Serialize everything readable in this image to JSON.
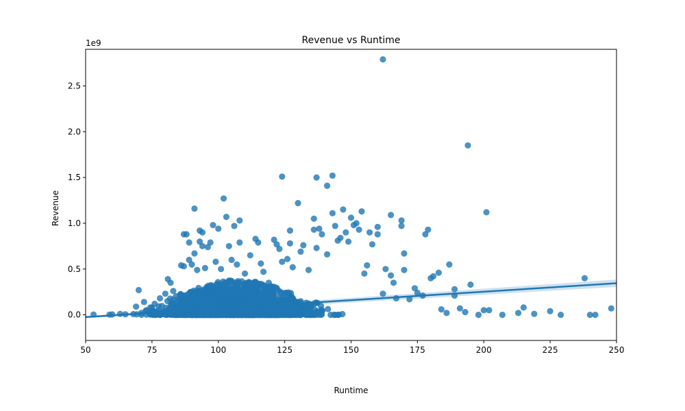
{
  "chart_data": {
    "type": "scatter",
    "title": "Revenue vs Runtime",
    "xlabel": "Runtime",
    "ylabel": "Revenue",
    "y_offset_label": "1e9",
    "xlim": [
      50,
      250
    ],
    "ylim": [
      -0.28,
      2.9
    ],
    "y_scale_factor": 1000000000,
    "xticks": [
      50,
      75,
      100,
      125,
      150,
      175,
      200,
      225,
      250
    ],
    "yticks": [
      0.0,
      0.5,
      1.0,
      1.5,
      2.0,
      2.5
    ],
    "grid": false,
    "colors": {
      "points": "#1f77b4",
      "line": "#1f77b4",
      "band": "#a6c8e4"
    },
    "regression": {
      "x": [
        50,
        250
      ],
      "y": [
        -0.025,
        0.345
      ],
      "ci_halfwidth": [
        0.012,
        0.04
      ]
    },
    "points": [
      [
        53,
        0.003
      ],
      [
        59,
        0.002
      ],
      [
        60,
        0.004
      ],
      [
        63,
        0.01
      ],
      [
        65,
        0.005
      ],
      [
        68,
        0.008
      ],
      [
        69,
        0.09
      ],
      [
        70,
        0.27
      ],
      [
        71,
        0.02
      ],
      [
        72,
        0.14
      ],
      [
        73,
        0.05
      ],
      [
        75,
        0.08
      ],
      [
        76,
        0.12
      ],
      [
        78,
        0.18
      ],
      [
        79,
        0.03
      ],
      [
        80,
        0.23
      ],
      [
        81,
        0.39
      ],
      [
        82,
        0.35
      ],
      [
        83,
        0.26
      ],
      [
        85,
        0.1
      ],
      [
        86,
        0.54
      ],
      [
        87,
        0.53
      ],
      [
        87,
        0.88
      ],
      [
        88,
        0.88
      ],
      [
        89,
        0.79
      ],
      [
        89,
        0.6
      ],
      [
        90,
        0.55
      ],
      [
        91,
        0.67
      ],
      [
        91,
        1.16
      ],
      [
        92,
        0.49
      ],
      [
        93,
        0.92
      ],
      [
        93,
        0.8
      ],
      [
        94,
        0.75
      ],
      [
        94,
        0.9
      ],
      [
        95,
        0.51
      ],
      [
        96,
        0.74
      ],
      [
        97,
        0.79
      ],
      [
        98,
        0.98
      ],
      [
        99,
        0.58
      ],
      [
        100,
        0.94
      ],
      [
        101,
        0.5
      ],
      [
        102,
        1.27
      ],
      [
        103,
        1.07
      ],
      [
        104,
        0.75
      ],
      [
        105,
        0.6
      ],
      [
        106,
        0.97
      ],
      [
        107,
        0.55
      ],
      [
        108,
        1.03
      ],
      [
        108,
        0.79
      ],
      [
        110,
        0.45
      ],
      [
        112,
        0.65
      ],
      [
        114,
        0.83
      ],
      [
        115,
        0.79
      ],
      [
        116,
        0.56
      ],
      [
        117,
        0.47
      ],
      [
        119,
        0.35
      ],
      [
        121,
        0.82
      ],
      [
        122,
        0.77
      ],
      [
        123,
        0.72
      ],
      [
        124,
        1.51
      ],
      [
        124,
        0.58
      ],
      [
        126,
        0.61
      ],
      [
        127,
        0.92
      ],
      [
        127,
        0.78
      ],
      [
        128,
        0.52
      ],
      [
        130,
        1.22
      ],
      [
        131,
        0.69
      ],
      [
        132,
        0.76
      ],
      [
        134,
        0.49
      ],
      [
        136,
        1.05
      ],
      [
        136,
        0.93
      ],
      [
        137,
        1.5
      ],
      [
        137,
        0.73
      ],
      [
        138,
        0.94
      ],
      [
        139,
        0.88
      ],
      [
        141,
        1.41
      ],
      [
        141,
        0.66
      ],
      [
        143,
        1.52
      ],
      [
        143,
        1.11
      ],
      [
        144,
        0.97
      ],
      [
        145,
        0.81
      ],
      [
        146,
        0.84
      ],
      [
        147,
        1.15
      ],
      [
        148,
        0.9
      ],
      [
        149,
        0.8
      ],
      [
        150,
        1.06
      ],
      [
        151,
        0.98
      ],
      [
        152,
        1.0
      ],
      [
        153,
        0.93
      ],
      [
        154,
        1.13
      ],
      [
        155,
        0.45
      ],
      [
        156,
        0.54
      ],
      [
        157,
        0.9
      ],
      [
        158,
        0.77
      ],
      [
        160,
        0.96
      ],
      [
        160,
        0.88
      ],
      [
        162,
        2.79
      ],
      [
        162,
        0.23
      ],
      [
        163,
        0.5
      ],
      [
        165,
        1.09
      ],
      [
        165,
        0.43
      ],
      [
        166,
        0.35
      ],
      [
        167,
        0.18
      ],
      [
        169,
        1.03
      ],
      [
        169,
        0.97
      ],
      [
        170,
        0.67
      ],
      [
        170,
        0.49
      ],
      [
        172,
        0.17
      ],
      [
        174,
        0.29
      ],
      [
        175,
        0.24
      ],
      [
        177,
        0.21
      ],
      [
        178,
        0.88
      ],
      [
        179,
        0.93
      ],
      [
        180,
        0.4
      ],
      [
        181,
        0.42
      ],
      [
        183,
        0.46
      ],
      [
        184,
        0.06
      ],
      [
        186,
        0.02
      ],
      [
        187,
        0.55
      ],
      [
        189,
        0.28
      ],
      [
        189,
        0.21
      ],
      [
        191,
        0.07
      ],
      [
        193,
        0.03
      ],
      [
        194,
        1.85
      ],
      [
        195,
        0.33
      ],
      [
        198,
        0.0
      ],
      [
        200,
        0.05
      ],
      [
        201,
        1.12
      ],
      [
        202,
        0.05
      ],
      [
        207,
        0.0
      ],
      [
        213,
        0.02
      ],
      [
        215,
        0.08
      ],
      [
        219,
        0.01
      ],
      [
        225,
        0.04
      ],
      [
        229,
        0.0
      ],
      [
        238,
        0.4
      ],
      [
        240,
        0.0
      ],
      [
        242,
        0.0
      ],
      [
        248,
        0.07
      ]
    ],
    "dense_cluster": {
      "note_free": true,
      "x_range": [
        65,
        180
      ],
      "count": 2400
    }
  }
}
